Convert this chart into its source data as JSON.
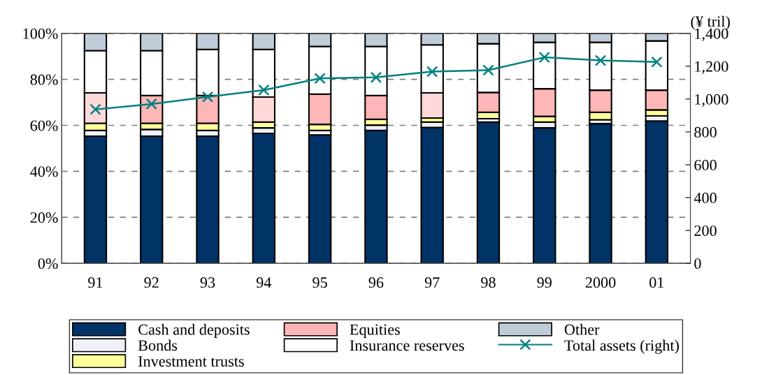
{
  "chart_data": {
    "type": "bar",
    "stacked": true,
    "categories": [
      "91",
      "92",
      "93",
      "94",
      "95",
      "96",
      "97",
      "98",
      "99",
      "2000",
      "01"
    ],
    "series": [
      {
        "name": "Cash and deposits",
        "color": "#003366",
        "values": [
          55.3,
          55.3,
          55.3,
          56.5,
          55.8,
          57.8,
          59.1,
          61.4,
          58.9,
          60.7,
          61.9
        ]
      },
      {
        "name": "Bonds",
        "color": "#f0f0f8",
        "values": [
          2.5,
          2.9,
          2.5,
          2.4,
          2.0,
          2.3,
          2.3,
          1.5,
          2.5,
          1.7,
          2.2
        ]
      },
      {
        "name": "Investment trusts",
        "color": "#ffff99",
        "values": [
          3.1,
          2.7,
          3.1,
          2.5,
          2.6,
          2.5,
          1.8,
          2.8,
          2.5,
          3.3,
          2.6
        ]
      },
      {
        "name": "Equities",
        "color": "#ffb6b6",
        "colors": [
          "#ffd9d9",
          "#ffb6b6",
          "#ffb6b6",
          "#ffd9d9",
          "#ffb6b6",
          "#ffb6b6",
          "#ffd9d9",
          "#ffb6b6",
          "#ffb6b6",
          "#ffb6b6",
          "#ffb6b6"
        ],
        "values": [
          13.2,
          12.1,
          12.1,
          10.9,
          13.2,
          10.4,
          10.9,
          8.6,
          12.0,
          9.6,
          8.6
        ]
      },
      {
        "name": "Insurance reserves",
        "color": "#ffffff",
        "values": [
          18.4,
          19.5,
          20.0,
          20.7,
          20.7,
          21.3,
          20.9,
          21.2,
          20.2,
          20.8,
          21.4
        ]
      },
      {
        "name": "Other",
        "color": "#c0ccd8",
        "values": [
          7.5,
          7.5,
          7.0,
          7.0,
          5.7,
          5.7,
          5.0,
          4.5,
          3.9,
          3.9,
          3.3
        ]
      },
      {
        "name": "Total assets (right)",
        "type": "line",
        "axis": "y2",
        "color": "#008080",
        "marker": "cross",
        "values": [
          937,
          970,
          1013,
          1055,
          1126,
          1132,
          1167,
          1176,
          1254,
          1235,
          1226
        ]
      }
    ],
    "ylim": [
      0,
      100
    ],
    "yticks": [
      {
        "value": 0,
        "label": "0%"
      },
      {
        "value": 20,
        "label": "20%"
      },
      {
        "value": 40,
        "label": "40%"
      },
      {
        "value": 60,
        "label": "60%"
      },
      {
        "value": 80,
        "label": "80%"
      },
      {
        "value": 100,
        "label": "100%"
      }
    ],
    "y2label": "(¥ tril)",
    "y2lim": [
      0,
      1400
    ],
    "y2ticks": [
      0,
      200,
      400,
      600,
      800,
      {
        "value": 1000,
        "label": "1,000"
      },
      {
        "value": 1200,
        "label": "1,200"
      },
      {
        "value": 1400,
        "label": "1,400"
      }
    ],
    "grid": "y",
    "line_style": "solid",
    "legend": "bottom"
  }
}
